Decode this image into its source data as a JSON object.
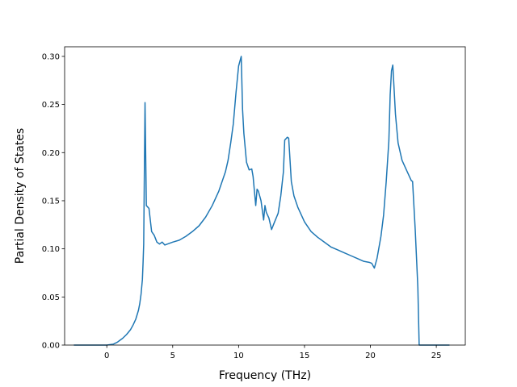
{
  "chart_data": {
    "type": "line",
    "title": "",
    "xlabel": "Frequency (THz)",
    "ylabel": "Partial Density of States",
    "xlim": [
      -3.2,
      27.2
    ],
    "ylim": [
      0.0,
      0.31
    ],
    "xticks": [
      0,
      5,
      10,
      15,
      20,
      25
    ],
    "yticks": [
      0.0,
      0.05,
      0.1,
      0.15,
      0.2,
      0.25,
      0.3
    ],
    "xtick_labels": [
      "0",
      "5",
      "10",
      "15",
      "20",
      "25"
    ],
    "ytick_labels": [
      "0.00",
      "0.05",
      "0.10",
      "0.15",
      "0.20",
      "0.25",
      "0.30"
    ],
    "grid": false,
    "legend": "none",
    "series": [
      {
        "color": "#1f77b4",
        "x": [
          -2.5,
          -1.0,
          0.0,
          0.5,
          0.8,
          1.0,
          1.2,
          1.5,
          1.8,
          2.0,
          2.2,
          2.4,
          2.5,
          2.6,
          2.7,
          2.75,
          2.8,
          2.85,
          2.9,
          3.0,
          3.2,
          3.4,
          3.6,
          3.8,
          4.0,
          4.2,
          4.4,
          4.6,
          5.0,
          5.5,
          6.0,
          6.5,
          7.0,
          7.5,
          8.0,
          8.5,
          9.0,
          9.2,
          9.4,
          9.6,
          9.8,
          10.0,
          10.2,
          10.3,
          10.4,
          10.6,
          10.8,
          11.0,
          11.1,
          11.2,
          11.3,
          11.4,
          11.5,
          11.7,
          11.9,
          12.0,
          12.1,
          12.3,
          12.5,
          12.7,
          13.0,
          13.2,
          13.4,
          13.5,
          13.7,
          13.8,
          14.0,
          14.2,
          14.5,
          15.0,
          15.5,
          16.0,
          16.5,
          17.0,
          17.5,
          18.0,
          18.5,
          19.0,
          19.5,
          19.9,
          20.1,
          20.3,
          20.5,
          20.8,
          21.0,
          21.2,
          21.4,
          21.5,
          21.6,
          21.7,
          21.9,
          22.1,
          22.4,
          22.8,
          23.0,
          23.1,
          23.2,
          23.4,
          23.6,
          23.7,
          24.5,
          26.0
        ],
        "y": [
          0.0,
          0.0,
          0.0,
          0.001,
          0.003,
          0.005,
          0.007,
          0.011,
          0.016,
          0.021,
          0.027,
          0.036,
          0.043,
          0.053,
          0.068,
          0.085,
          0.105,
          0.18,
          0.252,
          0.145,
          0.142,
          0.118,
          0.114,
          0.107,
          0.105,
          0.107,
          0.104,
          0.105,
          0.107,
          0.109,
          0.113,
          0.118,
          0.124,
          0.133,
          0.145,
          0.16,
          0.18,
          0.192,
          0.21,
          0.23,
          0.262,
          0.29,
          0.3,
          0.245,
          0.22,
          0.19,
          0.182,
          0.183,
          0.175,
          0.16,
          0.145,
          0.162,
          0.16,
          0.15,
          0.13,
          0.145,
          0.138,
          0.132,
          0.12,
          0.127,
          0.137,
          0.155,
          0.18,
          0.213,
          0.216,
          0.215,
          0.17,
          0.155,
          0.143,
          0.128,
          0.118,
          0.112,
          0.107,
          0.102,
          0.099,
          0.096,
          0.093,
          0.09,
          0.087,
          0.086,
          0.085,
          0.08,
          0.09,
          0.113,
          0.135,
          0.17,
          0.212,
          0.26,
          0.285,
          0.291,
          0.24,
          0.21,
          0.192,
          0.18,
          0.174,
          0.171,
          0.17,
          0.12,
          0.06,
          0.0,
          0.0,
          0.0
        ]
      }
    ]
  }
}
